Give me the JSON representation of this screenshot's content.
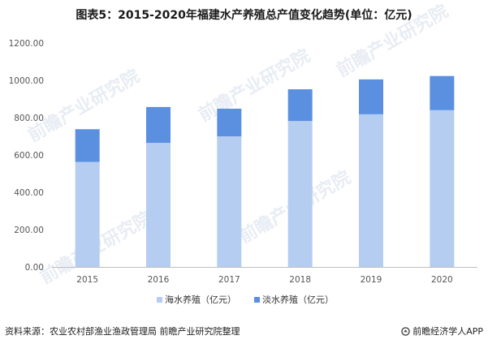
{
  "chart_data": {
    "type": "bar",
    "stacked": true,
    "title": "图表5：2015-2020年福建水产养殖总产值变化趋势(单位：亿元)",
    "categories": [
      "2015",
      "2016",
      "2017",
      "2018",
      "2019",
      "2020"
    ],
    "series": [
      {
        "name": "海水养殖（亿元）",
        "color": "#b4cdf0",
        "values": [
          563,
          665,
          700,
          782,
          818,
          840
        ]
      },
      {
        "name": "淡水养殖（亿元）",
        "color": "#5b8fe0",
        "values": [
          175,
          192,
          148,
          170,
          187,
          183
        ]
      }
    ],
    "yticks": [
      "0.00",
      "200.00",
      "400.00",
      "600.00",
      "800.00",
      "1000.00",
      "1200.00"
    ],
    "ylim": [
      0,
      1200
    ],
    "grid": false,
    "legend": "bottom"
  },
  "footer": {
    "source": "资料来源：农业农村部渔业渔政管理局 前瞻产业研究院整理",
    "brand": "前瞻经济学人APP"
  },
  "watermark": "前瞻产业研究院",
  "icons": {
    "brand": "qianzhan-logo-icon"
  }
}
